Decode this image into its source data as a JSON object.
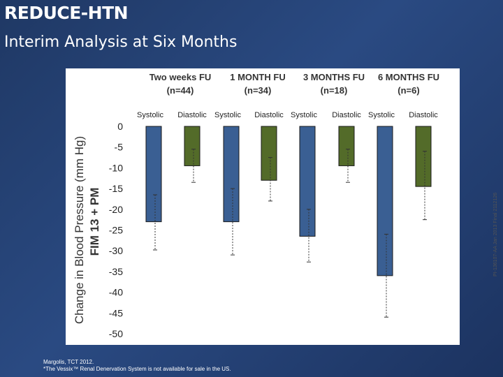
{
  "slide": {
    "title": "REDUCE-HTN",
    "subtitle": "Interim Analysis at Six Months",
    "footer_line1": "Margolis, TCT 2012.",
    "footer_line2": "*The Vessix™ Renal Denervation System is not available for sale in the US.",
    "side_code": "PI-136107-AA Jan 2013 Final 2112126"
  },
  "colors": {
    "background": "#1f3864",
    "systolic": "#3a5f93",
    "diastolic": "#536b29"
  },
  "chart_data": {
    "type": "bar",
    "title": "",
    "ylabel_line1": "Change in Blood Pressure (mm Hg)",
    "ylabel_line2": "FIM 13 + PM",
    "ylim": [
      -50,
      0
    ],
    "ytick_step": 5,
    "grid": false,
    "legend": "none",
    "groups": [
      {
        "name_line1": "Two weeks FU",
        "name_line2": "(n=44)"
      },
      {
        "name_line1": "1 MONTH FU",
        "name_line2": "(n=34)"
      },
      {
        "name_line1": "3 MONTHS FU",
        "name_line2": "(n=18)"
      },
      {
        "name_line1": "6 MONTHS FU",
        "name_line2": "(n=6)"
      }
    ],
    "categories": [
      "Systolic",
      "Diastolic",
      "Systolic",
      "Diastolic",
      "Systolic",
      "Diastolic",
      "Systolic",
      "Diastolic"
    ],
    "values": [
      -23.0,
      -9.5,
      -23.0,
      -13.0,
      -26.5,
      -9.5,
      -36.0,
      -14.5
    ],
    "error_low": [
      -29.8,
      -13.5,
      -31.0,
      -18.0,
      -32.7,
      -13.5,
      -46.0,
      -22.5
    ],
    "error_high": [
      -16.5,
      -5.5,
      -15.0,
      -7.5,
      -20.0,
      -5.5,
      -26.0,
      -6.0
    ]
  }
}
